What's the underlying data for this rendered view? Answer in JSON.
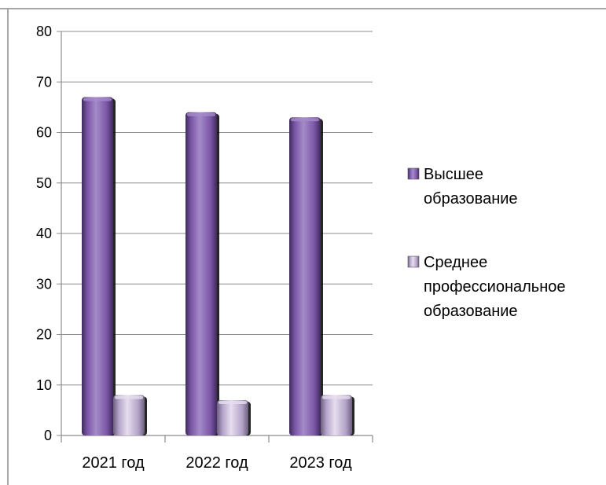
{
  "chart_data": {
    "type": "bar",
    "title": "",
    "xlabel": "",
    "ylabel": "",
    "categories": [
      "2021 год",
      "2022 год",
      "2023 год"
    ],
    "series": [
      {
        "name": "Высшее образование",
        "values": [
          67,
          64,
          63
        ]
      },
      {
        "name": "Среднее профессиональное образование",
        "values": [
          8,
          7,
          8
        ]
      }
    ],
    "ylim": [
      0,
      80
    ],
    "yticks": [
      0,
      10,
      20,
      30,
      40,
      50,
      60,
      70,
      80
    ],
    "grid": true,
    "legend_position": "right"
  },
  "legend": {
    "items": [
      {
        "lines": [
          "Высшее",
          "образование"
        ]
      },
      {
        "lines": [
          "Среднее",
          "профессиональное",
          "образование"
        ]
      }
    ]
  },
  "colors": {
    "series_1": "#7a56a6",
    "series_1_light": "#a58bc9",
    "series_1_dark": "#3f2a5c",
    "series_2": "#b3a3c8",
    "series_2_light": "#e6deef",
    "series_2_dark": "#6d5f80",
    "grid": "#8c8c8c",
    "axis": "#8c8c8c",
    "frame": "#8c8c8c"
  }
}
